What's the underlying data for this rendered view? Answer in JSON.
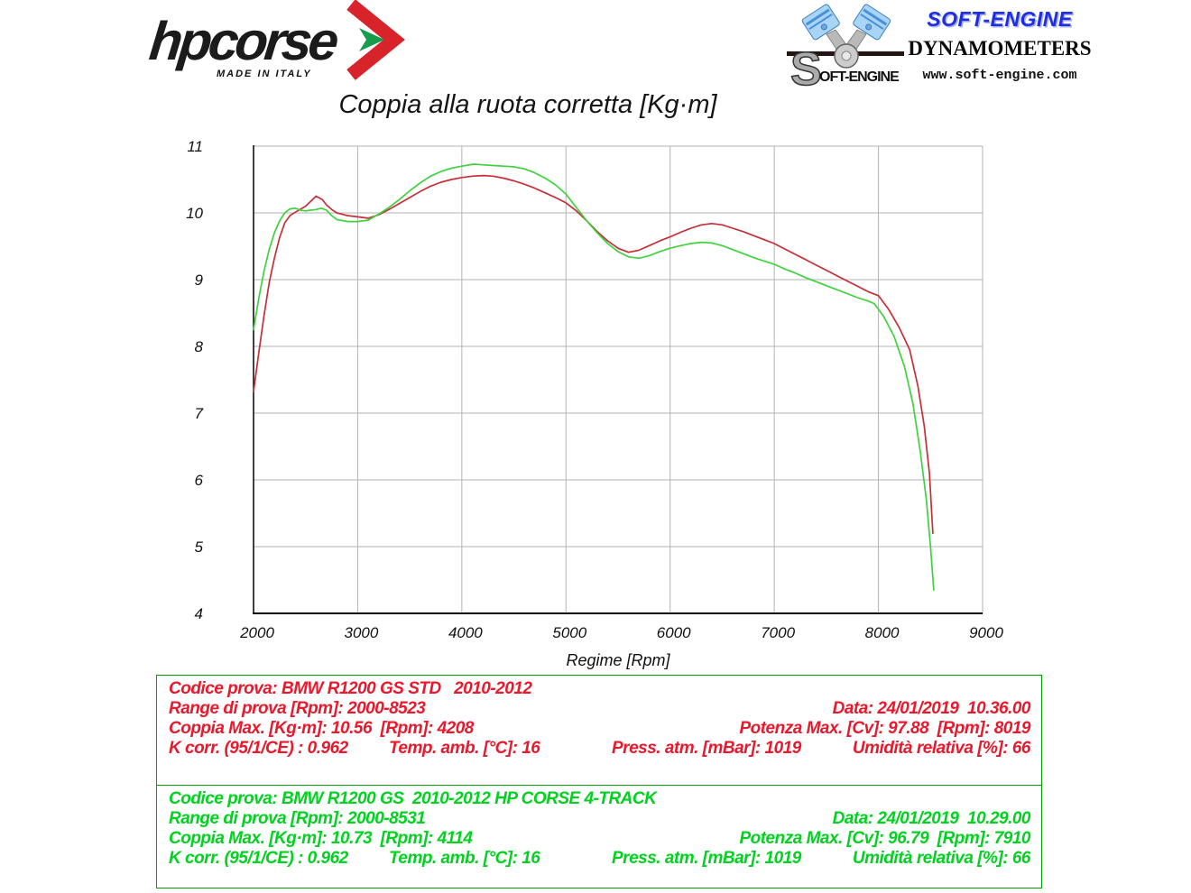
{
  "header": {
    "hpcorse": {
      "brand": "hpcorse",
      "tagline": "MADE IN ITALY"
    },
    "soft_engine": {
      "s_big": "S",
      "s_rest": "OFT-ENGINE",
      "brand": "SOFT-ENGINE",
      "subtitle": "DYNAMOMETERS",
      "website": "www.soft-engine.com"
    }
  },
  "chart_data": {
    "type": "line",
    "title": "Coppia alla ruota corretta [Kg·m]",
    "xlabel": "Regime [Rpm]",
    "xlim": [
      2000,
      9000
    ],
    "ylim": [
      4,
      11
    ],
    "x_ticks": [
      2000,
      3000,
      4000,
      5000,
      6000,
      7000,
      8000,
      9000
    ],
    "y_ticks": [
      4,
      5,
      6,
      7,
      8,
      9,
      10,
      11
    ],
    "grid": true,
    "legend_position": "none",
    "series": [
      {
        "id": "std",
        "name": "BMW R1200 GS STD 2010-2012",
        "color": "#c62f37",
        "points": [
          [
            2000,
            7.32
          ],
          [
            2050,
            7.9
          ],
          [
            2100,
            8.45
          ],
          [
            2150,
            8.95
          ],
          [
            2200,
            9.32
          ],
          [
            2250,
            9.63
          ],
          [
            2300,
            9.85
          ],
          [
            2350,
            9.96
          ],
          [
            2400,
            10.01
          ],
          [
            2500,
            10.1
          ],
          [
            2600,
            10.25
          ],
          [
            2660,
            10.2
          ],
          [
            2700,
            10.12
          ],
          [
            2750,
            10.05
          ],
          [
            2800,
            10.0
          ],
          [
            2900,
            9.96
          ],
          [
            3000,
            9.94
          ],
          [
            3100,
            9.92
          ],
          [
            3200,
            9.97
          ],
          [
            3300,
            10.05
          ],
          [
            3400,
            10.14
          ],
          [
            3500,
            10.23
          ],
          [
            3600,
            10.32
          ],
          [
            3700,
            10.4
          ],
          [
            3800,
            10.46
          ],
          [
            3900,
            10.5
          ],
          [
            4000,
            10.53
          ],
          [
            4100,
            10.55
          ],
          [
            4208,
            10.56
          ],
          [
            4300,
            10.55
          ],
          [
            4400,
            10.52
          ],
          [
            4500,
            10.48
          ],
          [
            4600,
            10.43
          ],
          [
            4700,
            10.37
          ],
          [
            4800,
            10.3
          ],
          [
            4900,
            10.23
          ],
          [
            5000,
            10.15
          ],
          [
            5100,
            10.03
          ],
          [
            5200,
            9.88
          ],
          [
            5300,
            9.72
          ],
          [
            5400,
            9.58
          ],
          [
            5500,
            9.47
          ],
          [
            5600,
            9.41
          ],
          [
            5700,
            9.44
          ],
          [
            5800,
            9.51
          ],
          [
            5900,
            9.58
          ],
          [
            6000,
            9.64
          ],
          [
            6100,
            9.71
          ],
          [
            6200,
            9.77
          ],
          [
            6300,
            9.82
          ],
          [
            6400,
            9.84
          ],
          [
            6500,
            9.82
          ],
          [
            6600,
            9.77
          ],
          [
            6700,
            9.72
          ],
          [
            6800,
            9.66
          ],
          [
            6900,
            9.6
          ],
          [
            7000,
            9.54
          ],
          [
            7100,
            9.46
          ],
          [
            7200,
            9.38
          ],
          [
            7300,
            9.3
          ],
          [
            7400,
            9.22
          ],
          [
            7500,
            9.14
          ],
          [
            7600,
            9.06
          ],
          [
            7700,
            8.98
          ],
          [
            7800,
            8.9
          ],
          [
            7900,
            8.82
          ],
          [
            8000,
            8.76
          ],
          [
            8100,
            8.55
          ],
          [
            8200,
            8.28
          ],
          [
            8300,
            7.95
          ],
          [
            8380,
            7.4
          ],
          [
            8440,
            6.8
          ],
          [
            8490,
            6.1
          ],
          [
            8523,
            5.2
          ]
        ]
      },
      {
        "id": "hp-corse-4-track",
        "name": "BMW R1200 GS 2010-2012 HP CORSE 4-TRACK",
        "color": "#3fd23f",
        "points": [
          [
            2000,
            8.25
          ],
          [
            2050,
            8.72
          ],
          [
            2100,
            9.12
          ],
          [
            2150,
            9.45
          ],
          [
            2200,
            9.7
          ],
          [
            2250,
            9.88
          ],
          [
            2300,
            10.0
          ],
          [
            2350,
            10.06
          ],
          [
            2400,
            10.07
          ],
          [
            2450,
            10.04
          ],
          [
            2500,
            10.03
          ],
          [
            2550,
            10.04
          ],
          [
            2600,
            10.05
          ],
          [
            2650,
            10.07
          ],
          [
            2700,
            10.04
          ],
          [
            2750,
            9.96
          ],
          [
            2800,
            9.9
          ],
          [
            2900,
            9.87
          ],
          [
            3000,
            9.87
          ],
          [
            3100,
            9.89
          ],
          [
            3200,
            9.98
          ],
          [
            3300,
            10.08
          ],
          [
            3400,
            10.2
          ],
          [
            3500,
            10.33
          ],
          [
            3600,
            10.45
          ],
          [
            3700,
            10.55
          ],
          [
            3800,
            10.62
          ],
          [
            3900,
            10.67
          ],
          [
            4000,
            10.7
          ],
          [
            4114,
            10.73
          ],
          [
            4200,
            10.72
          ],
          [
            4300,
            10.71
          ],
          [
            4400,
            10.7
          ],
          [
            4500,
            10.69
          ],
          [
            4600,
            10.66
          ],
          [
            4700,
            10.6
          ],
          [
            4800,
            10.52
          ],
          [
            4900,
            10.42
          ],
          [
            5000,
            10.28
          ],
          [
            5100,
            10.08
          ],
          [
            5200,
            9.88
          ],
          [
            5300,
            9.7
          ],
          [
            5400,
            9.54
          ],
          [
            5500,
            9.42
          ],
          [
            5600,
            9.34
          ],
          [
            5700,
            9.32
          ],
          [
            5800,
            9.36
          ],
          [
            5900,
            9.42
          ],
          [
            6000,
            9.47
          ],
          [
            6100,
            9.51
          ],
          [
            6200,
            9.54
          ],
          [
            6300,
            9.56
          ],
          [
            6400,
            9.55
          ],
          [
            6500,
            9.51
          ],
          [
            6600,
            9.45
          ],
          [
            6700,
            9.39
          ],
          [
            6800,
            9.33
          ],
          [
            6900,
            9.28
          ],
          [
            7000,
            9.23
          ],
          [
            7100,
            9.16
          ],
          [
            7200,
            9.1
          ],
          [
            7300,
            9.03
          ],
          [
            7400,
            8.97
          ],
          [
            7500,
            8.91
          ],
          [
            7600,
            8.85
          ],
          [
            7700,
            8.79
          ],
          [
            7800,
            8.73
          ],
          [
            7900,
            8.68
          ],
          [
            7960,
            8.64
          ],
          [
            8050,
            8.45
          ],
          [
            8150,
            8.15
          ],
          [
            8250,
            7.7
          ],
          [
            8330,
            7.15
          ],
          [
            8400,
            6.45
          ],
          [
            8460,
            5.7
          ],
          [
            8500,
            5.0
          ],
          [
            8531,
            4.35
          ]
        ]
      }
    ]
  },
  "tables": [
    {
      "color": "#e8192c",
      "codice": "Codice prova: BMW R1200 GS STD   2010-2012",
      "range": "Range di prova [Rpm]: 2000-8523",
      "data": "Data: 24/01/2019  10.36.00",
      "coppia_max": "Coppia Max. [Kg·m]: 10.56  [Rpm]: 4208",
      "potenza_max": "Potenza Max. [Cv]: 97.88  [Rpm]: 8019",
      "k_corr": "K corr. (95/1/CE) : 0.962",
      "temp": "Temp. amb. [°C]: 16",
      "press": "Press. atm. [mBar]: 1019",
      "umidita": "Umidità relativa [%]: 66"
    },
    {
      "color": "#00d21f",
      "codice": "Codice prova: BMW R1200 GS  2010-2012 HP CORSE 4-TRACK",
      "range": "Range di prova [Rpm]: 2000-8531",
      "data": "Data: 24/01/2019  10.29.00",
      "coppia_max": "Coppia Max. [Kg·m]: 10.73  [Rpm]: 4114",
      "potenza_max": "Potenza Max. [Cv]: 96.79  [Rpm]: 7910",
      "k_corr": "K corr. (95/1/CE) : 0.962",
      "temp": "Temp. amb. [°C]: 16",
      "press": "Press. atm. [mBar]: 1019",
      "umidita": "Umidità relativa [%]: 66"
    }
  ],
  "styles": {
    "table_border": "#00a000",
    "grid_color": "#b3b3b3",
    "axis_color": "#000000",
    "hp_red": "#d8232a",
    "hp_green": "#169c4c",
    "piston_blue": "#a8d4f5"
  }
}
